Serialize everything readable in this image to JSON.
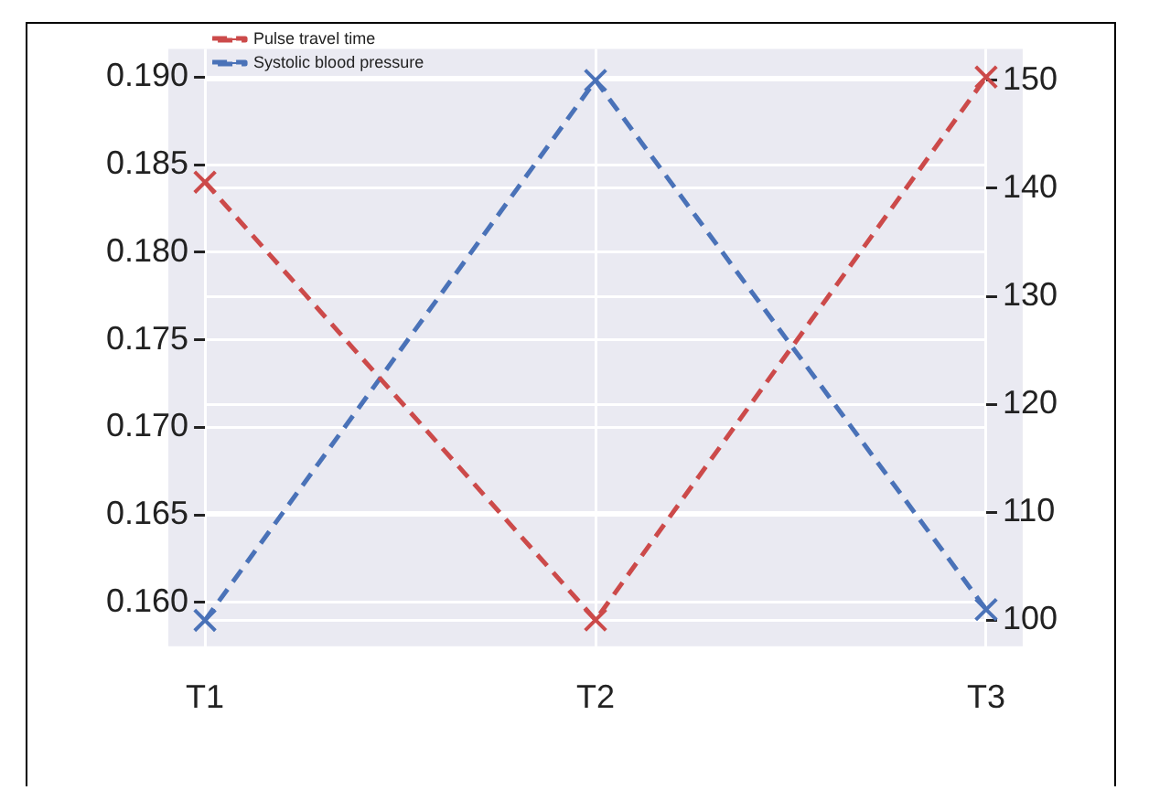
{
  "chart_data": {
    "type": "line",
    "categories": [
      "T1",
      "T2",
      "T3"
    ],
    "series": [
      {
        "name": "Pulse travel time",
        "color": "#cc4a4a",
        "values": [
          0.184,
          0.159,
          0.19
        ]
      },
      {
        "name": "Systolic blood pressure",
        "color": "#4a72b8",
        "values": [
          100,
          150,
          101
        ],
        "axis": "y2"
      }
    ],
    "ylim": [
      0.1575,
      0.1916
    ],
    "yticks": [
      {
        "value": 0.16,
        "label": "0.160"
      },
      0.165,
      {
        "value": 0.17,
        "label": "0.170"
      },
      0.175,
      {
        "value": 0.18,
        "label": "0.180"
      },
      0.185,
      {
        "value": 0.19,
        "label": "0.190"
      }
    ],
    "y2lim": [
      97.6,
      152.9
    ],
    "y2ticks": [
      100,
      110,
      120,
      130,
      140,
      150
    ],
    "grid": true,
    "legend": "top left",
    "marker": "cross",
    "line_style": "dashed"
  }
}
